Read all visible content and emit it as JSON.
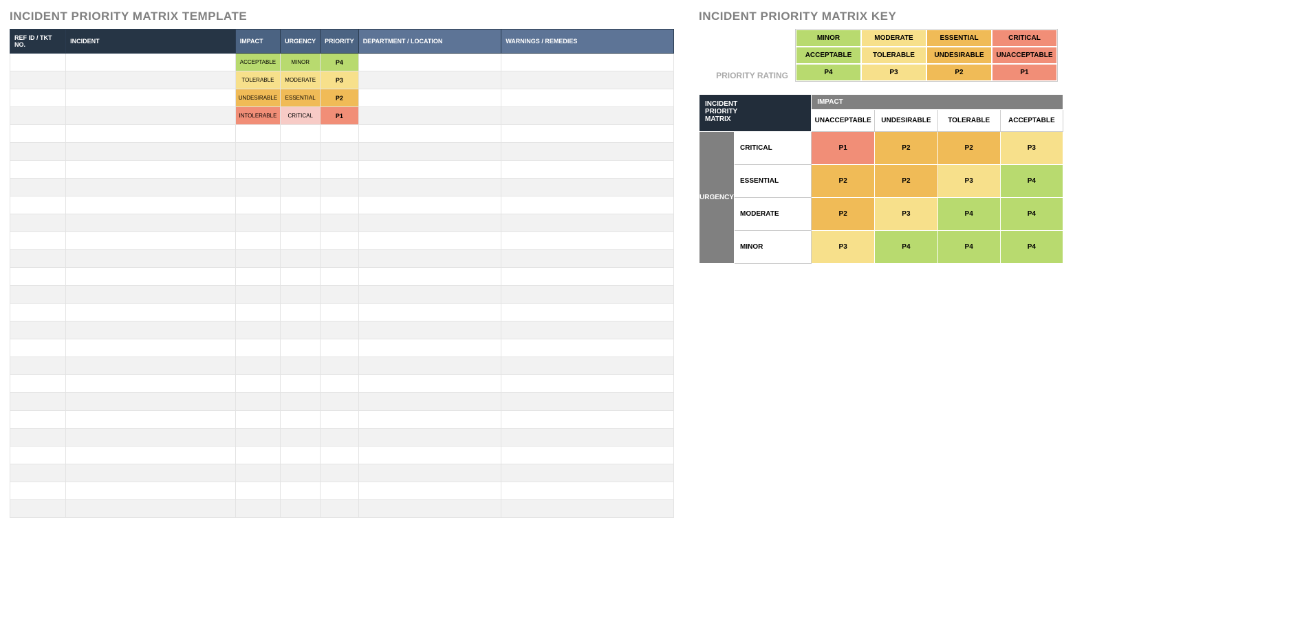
{
  "colors": {
    "green": "#b8da6f",
    "yellow": "#f7e08b",
    "orange": "#f0bb57",
    "red": "#f18e77",
    "pink": "#f7cbc6",
    "hdr_dark": "#263545",
    "hdr_mid": "#4b6382",
    "hdr_blue": "#5d7496",
    "grey_bg": "#f2f2f2",
    "grey_hdr": "#808080"
  },
  "template": {
    "title": "INCIDENT PRIORITY MATRIX TEMPLATE",
    "columns": [
      "REF ID / TKT NO.",
      "INCIDENT",
      "IMPACT",
      "URGENCY",
      "PRIORITY",
      "DEPARTMENT / LOCATION",
      "WARNINGS / REMEDIES"
    ],
    "rows": [
      {
        "impact": "ACCEPTABLE",
        "urgency": "MINOR",
        "priority": "P4",
        "impactColor": "green",
        "urgencyColor": "green",
        "priorityColor": "green"
      },
      {
        "impact": "TOLERABLE",
        "urgency": "MODERATE",
        "priority": "P3",
        "impactColor": "yellow",
        "urgencyColor": "yellow",
        "priorityColor": "yellow"
      },
      {
        "impact": "UNDESIRABLE",
        "urgency": "ESSENTIAL",
        "priority": "P2",
        "impactColor": "orange",
        "urgencyColor": "orange",
        "priorityColor": "orange"
      },
      {
        "impact": "INTOLERABLE",
        "urgency": "CRITICAL",
        "priority": "P1",
        "impactColor": "red",
        "urgencyColor": "pink",
        "priorityColor": "red"
      }
    ],
    "blankRows": 22
  },
  "key": {
    "title": "INCIDENT PRIORITY MATRIX KEY",
    "label": "PRIORITY RATING",
    "cols": [
      {
        "r1": "MINOR",
        "r2": "ACCEPTABLE",
        "r3": "P4",
        "color": "green"
      },
      {
        "r1": "MODERATE",
        "r2": "TOLERABLE",
        "r3": "P3",
        "color": "yellow"
      },
      {
        "r1": "ESSENTIAL",
        "r2": "UNDESIRABLE",
        "r3": "P2",
        "color": "orange"
      },
      {
        "r1": "CRITICAL",
        "r2": "UNACCEPTABLE",
        "r3": "P1",
        "color": "red"
      }
    ]
  },
  "matrix": {
    "corner": "INCIDENT PRIORITY MATRIX",
    "impactHeader": "IMPACT",
    "urgencyHeader": "URGENCY",
    "impactLabels": [
      "UNACCEPTABLE",
      "UNDESIRABLE",
      "TOLERABLE",
      "ACCEPTABLE"
    ],
    "urgencyLabels": [
      "CRITICAL",
      "ESSENTIAL",
      "MODERATE",
      "MINOR"
    ],
    "cells": [
      [
        {
          "v": "P1",
          "c": "red"
        },
        {
          "v": "P2",
          "c": "orange"
        },
        {
          "v": "P2",
          "c": "orange"
        },
        {
          "v": "P3",
          "c": "yellow"
        }
      ],
      [
        {
          "v": "P2",
          "c": "orange"
        },
        {
          "v": "P2",
          "c": "orange"
        },
        {
          "v": "P3",
          "c": "yellow"
        },
        {
          "v": "P4",
          "c": "green"
        }
      ],
      [
        {
          "v": "P2",
          "c": "orange"
        },
        {
          "v": "P3",
          "c": "yellow"
        },
        {
          "v": "P4",
          "c": "green"
        },
        {
          "v": "P4",
          "c": "green"
        }
      ],
      [
        {
          "v": "P3",
          "c": "yellow"
        },
        {
          "v": "P4",
          "c": "green"
        },
        {
          "v": "P4",
          "c": "green"
        },
        {
          "v": "P4",
          "c": "green"
        }
      ]
    ]
  }
}
